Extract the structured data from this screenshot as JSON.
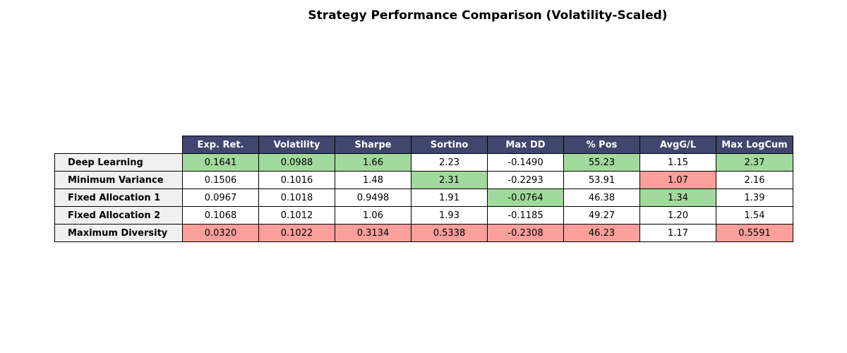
{
  "colors": {
    "header_bg": "#40466e",
    "header_text": "#ffffff",
    "row_header_bg": "#f0f0f0",
    "best": "#a2d99c",
    "worst": "#fa9f9b",
    "default": "#ffffff"
  },
  "chart_data": {
    "type": "table",
    "title": "Strategy Performance Comparison (Volatility-Scaled)",
    "columns": [
      "Exp. Ret.",
      "Volatility",
      "Sharpe",
      "Sortino",
      "Max DD",
      "% Pos",
      "AvgG/L",
      "Max LogCum"
    ],
    "rows": [
      {
        "label": "Deep Learning",
        "cells": [
          "0.1641",
          "0.0988",
          "1.66",
          "2.23",
          "-0.1490",
          "55.23",
          "1.15",
          "2.37"
        ],
        "highlight": [
          "best",
          "best",
          "best",
          "none",
          "none",
          "best",
          "none",
          "best"
        ]
      },
      {
        "label": "Minimum Variance",
        "cells": [
          "0.1506",
          "0.1016",
          "1.48",
          "2.31",
          "-0.2293",
          "53.91",
          "1.07",
          "2.16"
        ],
        "highlight": [
          "none",
          "none",
          "none",
          "best",
          "none",
          "none",
          "worst",
          "none"
        ]
      },
      {
        "label": "Fixed Allocation 1",
        "cells": [
          "0.0967",
          "0.1018",
          "0.9498",
          "1.91",
          "-0.0764",
          "46.38",
          "1.34",
          "1.39"
        ],
        "highlight": [
          "none",
          "none",
          "none",
          "none",
          "best",
          "none",
          "best",
          "none"
        ]
      },
      {
        "label": "Fixed Allocation 2",
        "cells": [
          "0.1068",
          "0.1012",
          "1.06",
          "1.93",
          "-0.1185",
          "49.27",
          "1.20",
          "1.54"
        ],
        "highlight": [
          "none",
          "none",
          "none",
          "none",
          "none",
          "none",
          "none",
          "none"
        ]
      },
      {
        "label": "Maximum Diversity",
        "cells": [
          "0.0320",
          "0.1022",
          "0.3134",
          "0.5338",
          "-0.2308",
          "46.23",
          "1.17",
          "0.5591"
        ],
        "highlight": [
          "worst",
          "worst",
          "worst",
          "worst",
          "worst",
          "worst",
          "none",
          "worst"
        ]
      }
    ]
  }
}
